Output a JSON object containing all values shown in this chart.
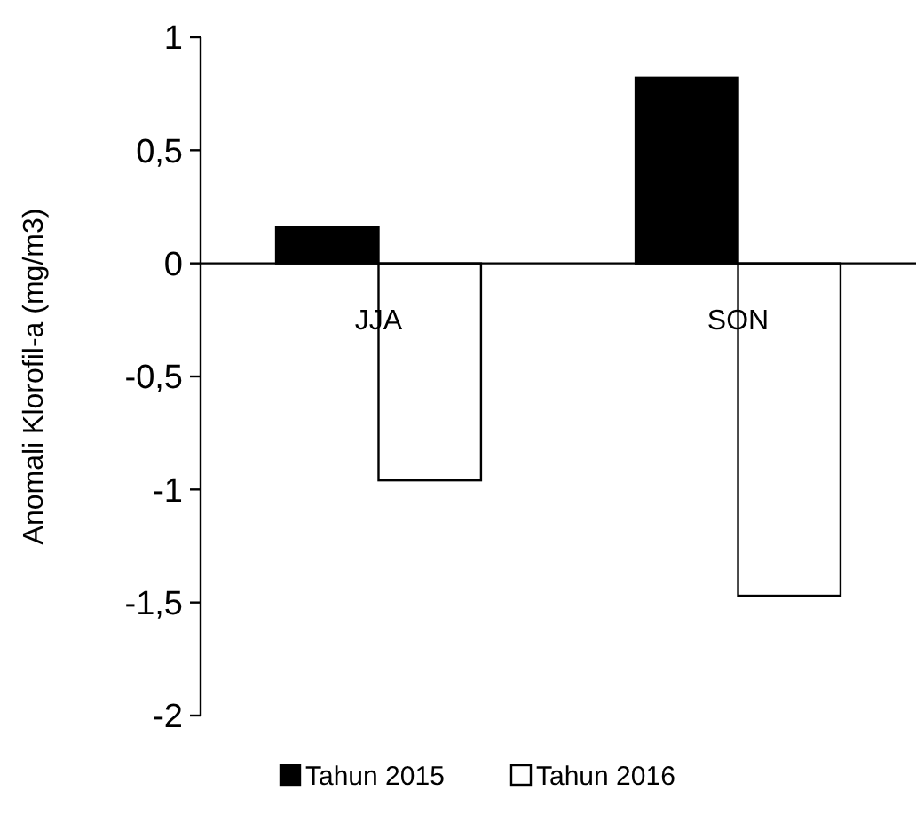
{
  "chart_data": {
    "type": "bar",
    "ylabel": "Anomali Klorofil-a (mg/m3)",
    "categories": [
      "JJA",
      "SON"
    ],
    "series": [
      {
        "name": "Tahun 2015",
        "color": "#000000",
        "values": [
          0.16,
          0.82
        ]
      },
      {
        "name": "Tahun 2016",
        "color": "#ffffff",
        "values": [
          -0.96,
          -1.47
        ]
      }
    ],
    "ylim": [
      -2,
      1
    ],
    "yticks": [
      {
        "value": -2,
        "label": "-2"
      },
      {
        "value": -1.5,
        "label": "-1,5"
      },
      {
        "value": -1,
        "label": "-1"
      },
      {
        "value": -0.5,
        "label": "-0,5"
      },
      {
        "value": 0,
        "label": "0"
      },
      {
        "value": 0.5,
        "label": "0,5"
      },
      {
        "value": 1,
        "label": "1"
      }
    ],
    "grid": false,
    "legend": "bottom"
  }
}
